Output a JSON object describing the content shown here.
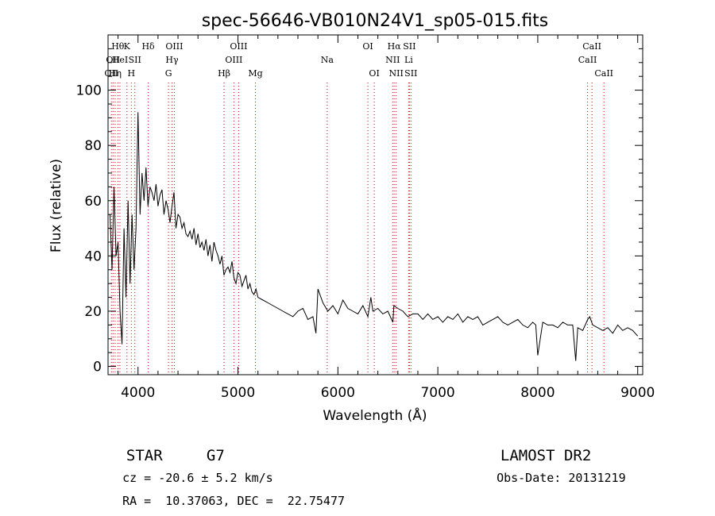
{
  "chart_data": {
    "type": "line",
    "title": "spec-56646-VB010N24V1_sp05-015.fits",
    "xlabel": "Wavelength (Å)",
    "ylabel": "Flux (relative)",
    "xlim": [
      3700,
      9050
    ],
    "ylim": [
      -3,
      120
    ],
    "xticks": [
      4000,
      5000,
      6000,
      7000,
      8000,
      9000
    ],
    "yticks": [
      0,
      20,
      40,
      60,
      80,
      100
    ],
    "grid": false,
    "line_color": "#000000",
    "marker_color": "#cc0000",
    "series": [
      {
        "x": [
          3720,
          3740,
          3760,
          3780,
          3800,
          3820,
          3840,
          3860,
          3880,
          3900,
          3920,
          3940,
          3960,
          3980,
          4000,
          4020,
          4040,
          4060,
          4080,
          4100,
          4120,
          4140,
          4160,
          4180,
          4200,
          4220,
          4240,
          4260,
          4280,
          4300,
          4320,
          4340,
          4360,
          4380,
          4400,
          4420,
          4440,
          4460,
          4480,
          4500,
          4520,
          4540,
          4560,
          4580,
          4600,
          4620,
          4640,
          4660,
          4680,
          4700,
          4720,
          4740,
          4760,
          4780,
          4800,
          4820,
          4840,
          4860,
          4880,
          4900,
          4920,
          4940,
          4960,
          4980,
          5000,
          5020,
          5040,
          5060,
          5080,
          5100,
          5120,
          5140,
          5160,
          5180,
          5200,
          5250,
          5300,
          5350,
          5400,
          5450,
          5500,
          5550,
          5600,
          5650,
          5700,
          5750,
          5780,
          5800,
          5850,
          5900,
          5950,
          6000,
          6050,
          6100,
          6150,
          6200,
          6250,
          6300,
          6330,
          6350,
          6400,
          6450,
          6500,
          6550,
          6560,
          6600,
          6650,
          6700,
          6750,
          6800,
          6850,
          6900,
          6950,
          7000,
          7050,
          7100,
          7150,
          7200,
          7250,
          7300,
          7350,
          7400,
          7450,
          7500,
          7550,
          7600,
          7650,
          7700,
          7750,
          7800,
          7850,
          7900,
          7950,
          7980,
          8000,
          8050,
          8100,
          8150,
          8200,
          8250,
          8300,
          8350,
          8380,
          8400,
          8450,
          8500,
          8520,
          8550,
          8600,
          8650,
          8700,
          8750,
          8800,
          8850,
          8900,
          8950,
          9000
        ],
        "y": [
          55,
          35,
          65,
          40,
          45,
          20,
          8,
          50,
          25,
          60,
          30,
          55,
          35,
          50,
          92,
          55,
          70,
          60,
          72,
          58,
          65,
          63,
          60,
          66,
          58,
          62,
          64,
          55,
          60,
          57,
          52,
          58,
          63,
          50,
          55,
          54,
          50,
          52,
          48,
          47,
          49,
          46,
          50,
          44,
          48,
          43,
          45,
          42,
          46,
          40,
          44,
          38,
          45,
          42,
          40,
          37,
          40,
          33,
          35,
          36,
          34,
          38,
          32,
          30,
          34,
          33,
          29,
          31,
          33,
          28,
          30,
          27,
          26,
          28,
          25,
          24,
          23,
          22,
          21,
          20,
          19,
          18,
          20,
          21,
          17,
          18,
          12,
          28,
          23,
          20,
          22,
          19,
          24,
          21,
          20,
          19,
          22,
          18,
          25,
          20,
          21,
          19,
          20,
          16,
          22,
          21,
          20,
          18,
          19,
          19,
          17,
          19,
          17,
          18,
          16,
          18,
          17,
          19,
          16,
          18,
          17,
          18,
          15,
          16,
          17,
          18,
          16,
          15,
          16,
          17,
          15,
          14,
          16,
          15,
          4,
          16,
          15,
          15,
          14,
          16,
          15,
          15,
          2,
          14,
          13,
          17,
          18,
          15,
          14,
          13,
          14,
          12,
          15,
          13,
          14,
          13,
          11
        ]
      }
    ],
    "lines": [
      {
        "wl": 3734,
        "label": "OII",
        "row": 2
      },
      {
        "wl": 3750,
        "label": "OII",
        "row": 1
      },
      {
        "wl": 3771,
        "label": "Hη",
        "row": 2
      },
      {
        "wl": 3798,
        "label": "Hθ",
        "row": 0
      },
      {
        "wl": 3819,
        "label": "HeI",
        "row": 1
      },
      {
        "wl": 3889,
        "label": "K",
        "row": 0
      },
      {
        "wl": 3933,
        "label": "H",
        "row": 2
      },
      {
        "wl": 3968,
        "label": "SII",
        "row": 1
      },
      {
        "wl": 4102,
        "label": "Hδ",
        "row": 0
      },
      {
        "wl": 4305,
        "label": "G",
        "row": 2
      },
      {
        "wl": 4340,
        "label": "Hγ",
        "row": 1
      },
      {
        "wl": 4363,
        "label": "OIII",
        "row": 0
      },
      {
        "wl": 4861,
        "label": "Hβ",
        "row": 2
      },
      {
        "wl": 4959,
        "label": "OIII",
        "row": 1
      },
      {
        "wl": 5007,
        "label": "OIII",
        "row": 0
      },
      {
        "wl": 5175,
        "label": "Mg",
        "row": 2
      },
      {
        "wl": 5893,
        "label": "Na",
        "row": 1
      },
      {
        "wl": 6300,
        "label": "OI",
        "row": 0
      },
      {
        "wl": 6364,
        "label": "OI",
        "row": 2
      },
      {
        "wl": 6548,
        "label": "NII",
        "row": 1
      },
      {
        "wl": 6563,
        "label": "Hα",
        "row": 0
      },
      {
        "wl": 6583,
        "label": "NII",
        "row": 2
      },
      {
        "wl": 6708,
        "label": "Li",
        "row": 1
      },
      {
        "wl": 6716,
        "label": "SII",
        "row": 0
      },
      {
        "wl": 6731,
        "label": "SII",
        "row": 2
      },
      {
        "wl": 8498,
        "label": "CaII",
        "row": 1
      },
      {
        "wl": 8542,
        "label": "CaII",
        "row": 0
      },
      {
        "wl": 8662,
        "label": "CaII",
        "row": 2
      }
    ]
  },
  "footer": {
    "class_label": "STAR",
    "subclass": "G7",
    "survey": "LAMOST DR2",
    "cz": "cz = -20.6 ± 5.2 km/s",
    "obs_date": "Obs-Date: 20131219",
    "coords": "RA =  10.37063, DEC =  22.75477"
  }
}
